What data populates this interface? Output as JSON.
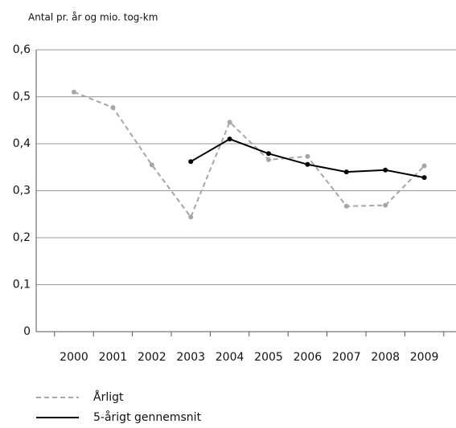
{
  "chart_data": {
    "type": "line",
    "y_axis_label": "Antal pr. år og mio. tog-km",
    "categories": [
      "2000",
      "2001",
      "2002",
      "2003",
      "2004",
      "2005",
      "2006",
      "2007",
      "2008",
      "2009"
    ],
    "series": [
      {
        "name": "Årligt",
        "color": "#a6a6a6",
        "linestyle": "dashed",
        "values": [
          0.51,
          0.477,
          0.355,
          0.244,
          0.446,
          0.366,
          0.373,
          0.267,
          0.269,
          0.353
        ]
      },
      {
        "name": "5-årigt gennemsnit",
        "color": "#000000",
        "linestyle": "solid",
        "values": [
          null,
          null,
          null,
          0.362,
          0.41,
          0.379,
          0.356,
          0.34,
          0.344,
          0.328
        ]
      }
    ],
    "ylim": [
      0,
      0.6
    ],
    "yticks": [
      0,
      {
        "value": 0.1,
        "label": "0,1"
      },
      {
        "value": 0.2,
        "label": "0,2"
      },
      {
        "value": 0.3,
        "label": "0,3"
      },
      {
        "value": 0.4,
        "label": "0,4"
      },
      {
        "value": 0.5,
        "label": "0,5"
      },
      {
        "value": 0.6,
        "label": "0,6"
      }
    ],
    "grid": true
  }
}
